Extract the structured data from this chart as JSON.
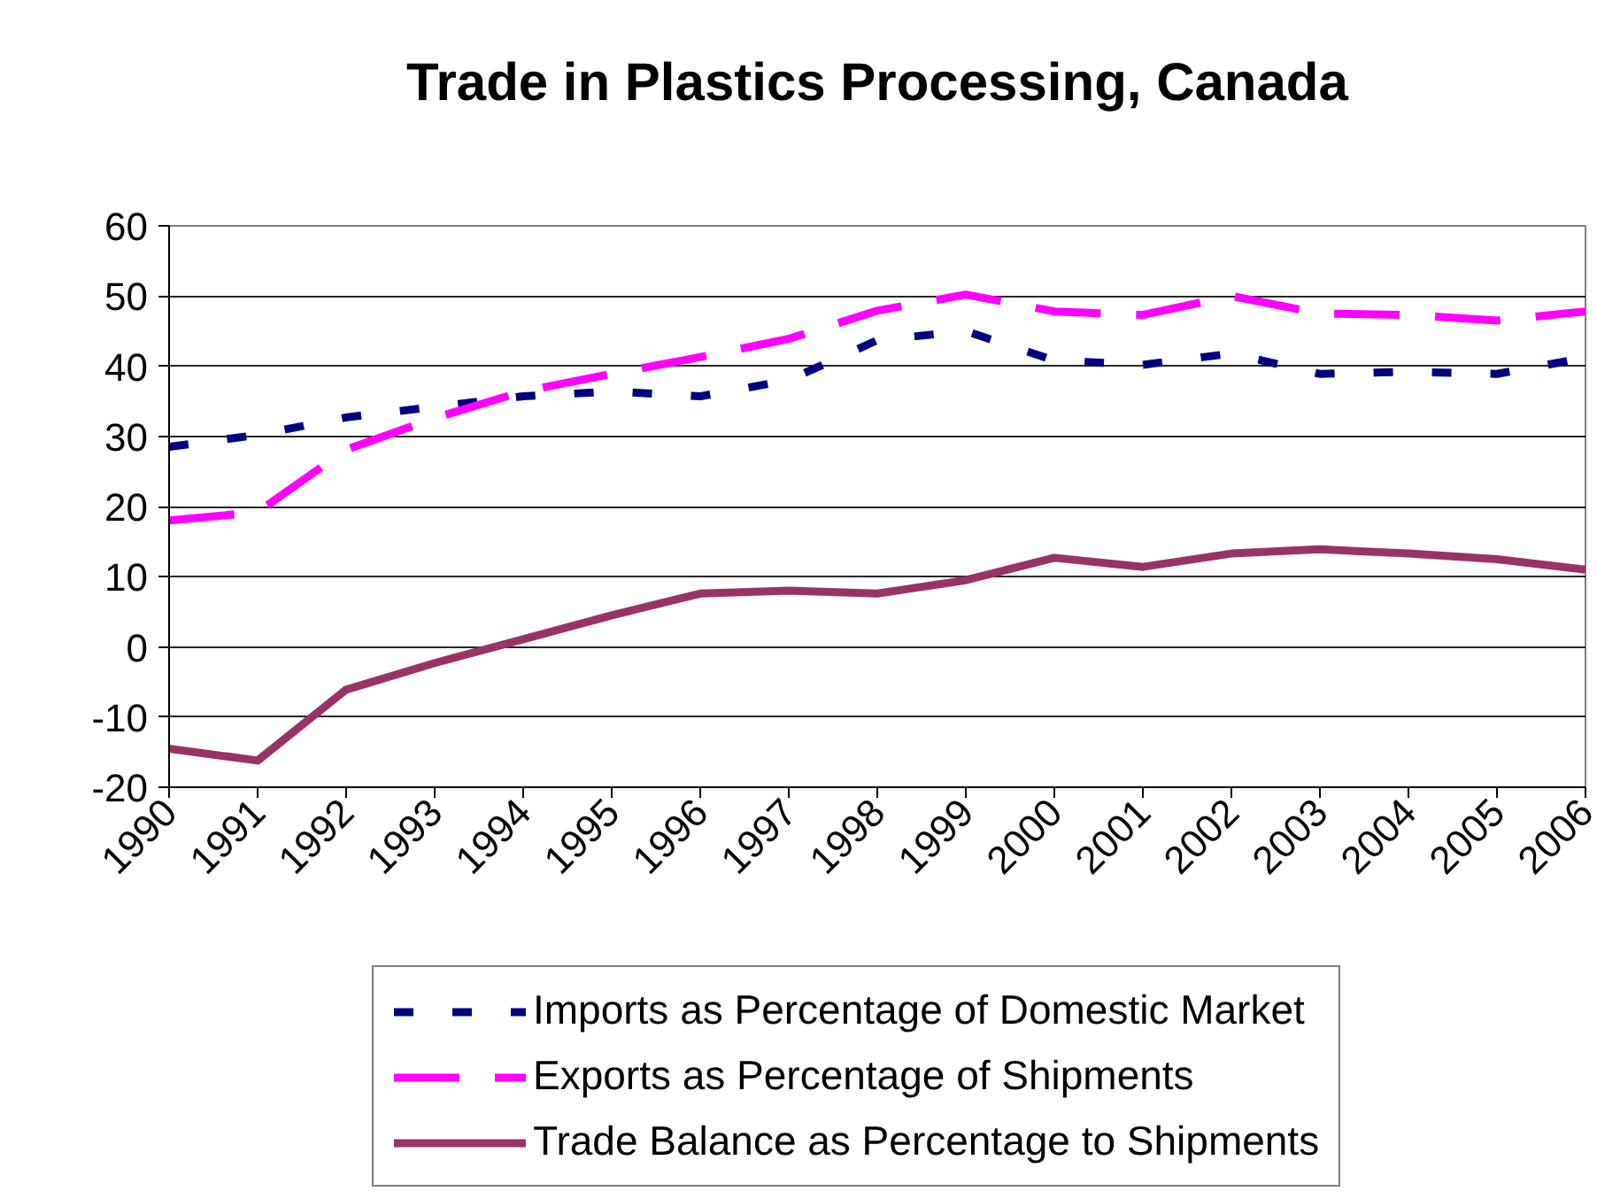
{
  "chart_data": {
    "type": "line",
    "title": "Trade in Plastics Processing, Canada",
    "categories": [
      "1990",
      "1991",
      "1992",
      "1993",
      "1994",
      "1995",
      "1996",
      "1997",
      "1998",
      "1999",
      "2000",
      "2001",
      "2002",
      "2003",
      "2004",
      "2005",
      "2006"
    ],
    "series": [
      {
        "name": "Imports as Percentage of Domestic Market",
        "color": "#000080",
        "line_style": "dotted",
        "values": [
          28.5,
          30.2,
          32.7,
          34.2,
          35.7,
          36.4,
          35.7,
          38.0,
          43.7,
          45.0,
          40.8,
          40.2,
          41.8,
          38.9,
          39.2,
          38.9,
          41.2
        ]
      },
      {
        "name": "Exports as Percentage of Shipments",
        "color": "#ff00ff",
        "line_style": "dashed",
        "values": [
          18.0,
          19.2,
          28.1,
          32.6,
          36.4,
          38.9,
          41.3,
          43.9,
          47.9,
          50.2,
          47.8,
          47.3,
          50.0,
          47.5,
          47.3,
          46.5,
          47.8
        ]
      },
      {
        "name": "Trade Balance as Percentage to Shipments",
        "color": "#993366",
        "line_style": "solid",
        "values": [
          -14.5,
          -16.2,
          -6.1,
          -2.3,
          1.1,
          4.5,
          7.6,
          8.0,
          7.6,
          9.5,
          12.7,
          11.4,
          13.3,
          13.9,
          13.3,
          12.5,
          11.0
        ]
      }
    ],
    "ylim": [
      -20,
      60
    ],
    "yticks": [
      -20,
      -10,
      0,
      10,
      20,
      30,
      40,
      50,
      60
    ],
    "grid": "y",
    "legend": "bottom"
  }
}
